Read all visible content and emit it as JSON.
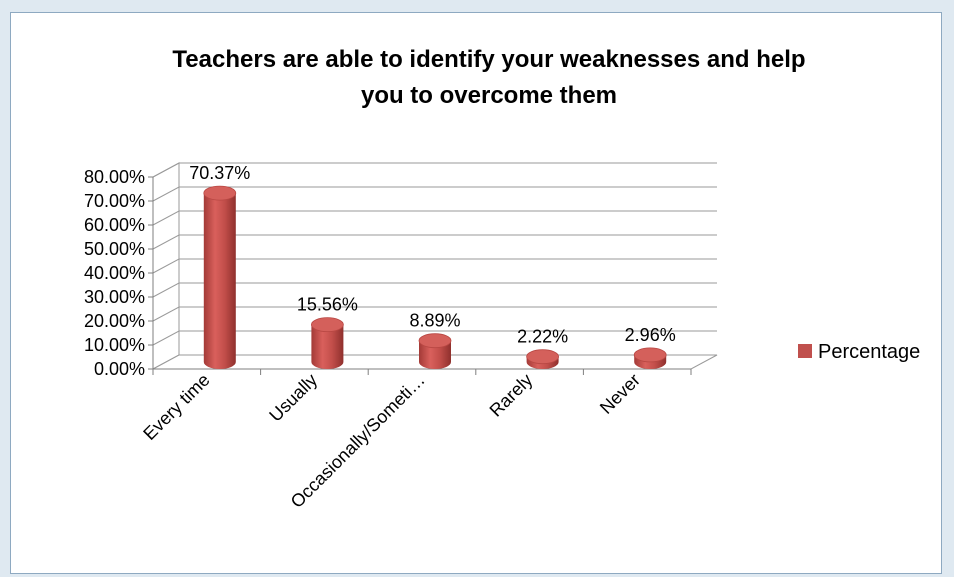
{
  "chart_data": {
    "type": "bar",
    "title": "Teachers are able to identify your weaknesses and help you to overcome them",
    "title_lines": [
      "Teachers are able to identify your weaknesses and help",
      "you to overcome them"
    ],
    "categories": [
      "Every time",
      "Usually",
      "Occasionally/Someti…",
      "Rarely",
      "Never"
    ],
    "series": [
      {
        "name": "Percentage",
        "values": [
          70.37,
          15.56,
          8.89,
          2.22,
          2.96
        ],
        "labels": [
          "70.37%",
          "15.56%",
          "8.89%",
          "2.22%",
          "2.96%"
        ],
        "color": "#c0504d"
      }
    ],
    "y_ticks": [
      "0.00%",
      "10.00%",
      "20.00%",
      "30.00%",
      "40.00%",
      "50.00%",
      "60.00%",
      "70.00%",
      "80.00%"
    ],
    "ylim": [
      0,
      80
    ],
    "xlabel": "",
    "ylabel": "",
    "grid": true,
    "legend_position": "right",
    "style": "3d-cylinder"
  }
}
